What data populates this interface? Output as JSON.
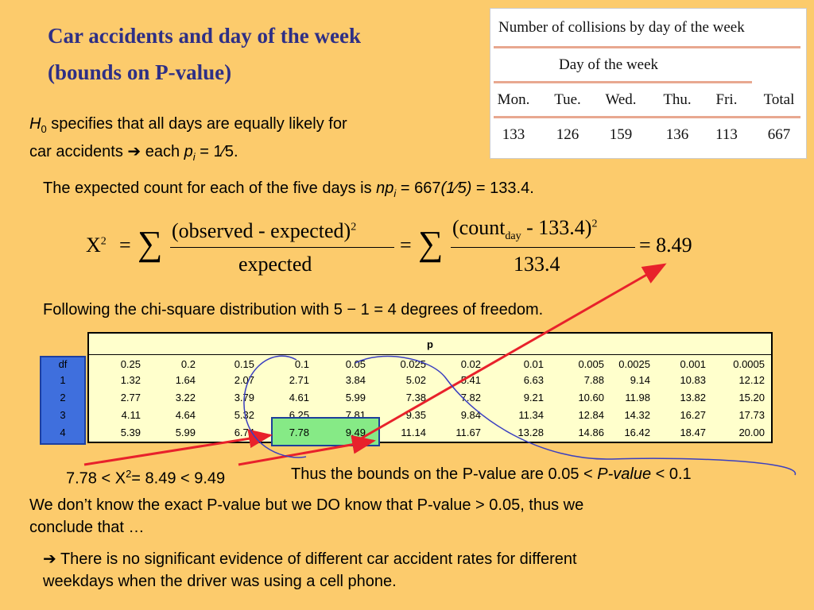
{
  "title": {
    "line1": "Car accidents and day of the week",
    "line2": "(bounds on P-value)"
  },
  "h0": {
    "var": "H",
    "sub": "0",
    "line1_text": " specifies that all days are equally likely for",
    "line2_start": "car accidents ",
    "arrow": "➔",
    "each": " each ",
    "p_var": "p",
    "p_sub": "i",
    "p_rest": " = 1⁄5."
  },
  "expected": {
    "text": "The expected count for each of the five days is ",
    "np": "np",
    "sub": "i",
    "rest_a": " = 667",
    "rest_b": "(1⁄5)",
    "rest_c": " = 133.4."
  },
  "formula": {
    "lhs": "X",
    "lhs_exp": "2",
    "eq": "=",
    "sigma": "∑",
    "num1": "(observed - expected)",
    "num1_exp": "2",
    "den1": "expected",
    "num2a": "(count",
    "num2_sub": "day",
    "num2b": " - 133.4)",
    "num2_exp": "2",
    "den2": "133.4",
    "result": "= 8.49"
  },
  "chi_text": "Following the chi-square distribution with 5 − 1 = 4 degrees of freedom.",
  "collision_table": {
    "title": "Number of collisions by day of the week",
    "subtitle": "Day of the week",
    "headers": [
      "Mon.",
      "Tue.",
      "Wed.",
      "Thu.",
      "Fri.",
      "Total"
    ],
    "values": [
      "133",
      "126",
      "159",
      "136",
      "113",
      "667"
    ]
  },
  "chi_table": {
    "p_label": "p",
    "df_label": "df",
    "p_values": [
      "0.25",
      "0.2",
      "0.15",
      "0.1",
      "0.05",
      "0.025",
      "0.02",
      "0.01",
      "0.005",
      "0.0025",
      "0.001",
      "0.0005"
    ],
    "rows": [
      {
        "df": "1",
        "values": [
          "1.32",
          "1.64",
          "2.07",
          "2.71",
          "3.84",
          "5.02",
          "5.41",
          "6.63",
          "7.88",
          "9.14",
          "10.83",
          "12.12"
        ]
      },
      {
        "df": "2",
        "values": [
          "2.77",
          "3.22",
          "3.79",
          "4.61",
          "5.99",
          "7.38",
          "7.82",
          "9.21",
          "10.60",
          "11.98",
          "13.82",
          "15.20"
        ]
      },
      {
        "df": "3",
        "values": [
          "4.11",
          "4.64",
          "5.32",
          "6.25",
          "7.81",
          "9.35",
          "9.84",
          "11.34",
          "12.84",
          "14.32",
          "16.27",
          "17.73"
        ]
      },
      {
        "df": "4",
        "values": [
          "5.39",
          "5.99",
          "6.74",
          "7.78",
          "9.49",
          "11.14",
          "11.67",
          "13.28",
          "14.86",
          "16.42",
          "18.47",
          "20.00"
        ]
      }
    ]
  },
  "bounds": {
    "ineq_a": "7.78 < X",
    "ineq_exp": "2",
    "ineq_b": "= 8.49 < 9.49",
    "text_a": "Thus the bounds on the P-value are 0.05 < ",
    "p_value": "P-value",
    "text_b": " < 0.1"
  },
  "conclusion": {
    "line1": "We don’t know the exact P-value but we DO know that P-value > 0.05, thus we",
    "line2": "conclude that …",
    "arrow": "➔",
    "line3": " There is no significant evidence of different car accident rates for different",
    "line4": "weekdays when the driver was using a cell phone."
  },
  "colors": {
    "background": "#fccb6c",
    "title": "#2e2f86",
    "arrow_red": "#e8212b",
    "curve_blue": "#3a3fc0",
    "highlight": "#86ea86",
    "df_column": "#3f6fdd"
  }
}
